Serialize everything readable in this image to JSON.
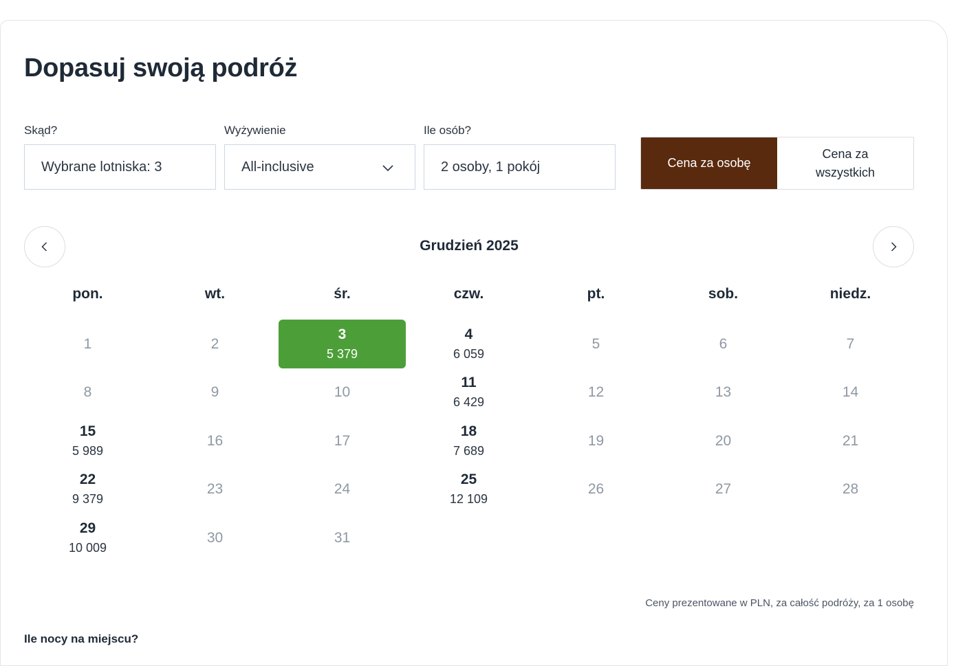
{
  "title": "Dopasuj swoją podróż",
  "fields": {
    "from": {
      "label": "Skąd?",
      "value": "Wybrane lotniska: 3"
    },
    "board": {
      "label": "Wyżywienie",
      "value": "All-inclusive"
    },
    "people": {
      "label": "Ile osób?",
      "value": "2 osoby, 1 pokój"
    }
  },
  "price_toggle": {
    "per_person": "Cena za osobę",
    "total_line1": "Cena za",
    "total_line2": "wszystkich",
    "active": "per_person",
    "active_color": "#5a2a0e"
  },
  "calendar": {
    "month": "Grudzień 2025",
    "weekdays": [
      "pon.",
      "wt.",
      "śr.",
      "czw.",
      "pt.",
      "sob.",
      "niedz."
    ],
    "first_weekday_index": 0,
    "selected_day": 3,
    "selected_color": "#4c9f38",
    "days": [
      {
        "d": "1"
      },
      {
        "d": "2"
      },
      {
        "d": "3",
        "price": "5 379"
      },
      {
        "d": "4",
        "price": "6 059"
      },
      {
        "d": "5"
      },
      {
        "d": "6"
      },
      {
        "d": "7"
      },
      {
        "d": "8"
      },
      {
        "d": "9"
      },
      {
        "d": "10"
      },
      {
        "d": "11",
        "price": "6 429"
      },
      {
        "d": "12"
      },
      {
        "d": "13"
      },
      {
        "d": "14"
      },
      {
        "d": "15",
        "price": "5 989"
      },
      {
        "d": "16"
      },
      {
        "d": "17"
      },
      {
        "d": "18",
        "price": "7 689"
      },
      {
        "d": "19"
      },
      {
        "d": "20"
      },
      {
        "d": "21"
      },
      {
        "d": "22",
        "price": "9 379"
      },
      {
        "d": "23"
      },
      {
        "d": "24"
      },
      {
        "d": "25",
        "price": "12 109"
      },
      {
        "d": "26"
      },
      {
        "d": "27"
      },
      {
        "d": "28"
      },
      {
        "d": "29",
        "price": "10 009"
      },
      {
        "d": "30"
      },
      {
        "d": "31"
      }
    ]
  },
  "note": "Ceny prezentowane w PLN, za całość podróży, za 1 osobę",
  "nights_label": "Ile nocy na miejscu?",
  "icons": {
    "prev": "chevron-left-icon",
    "next": "chevron-right-icon",
    "dropdown": "chevron-down-icon"
  }
}
